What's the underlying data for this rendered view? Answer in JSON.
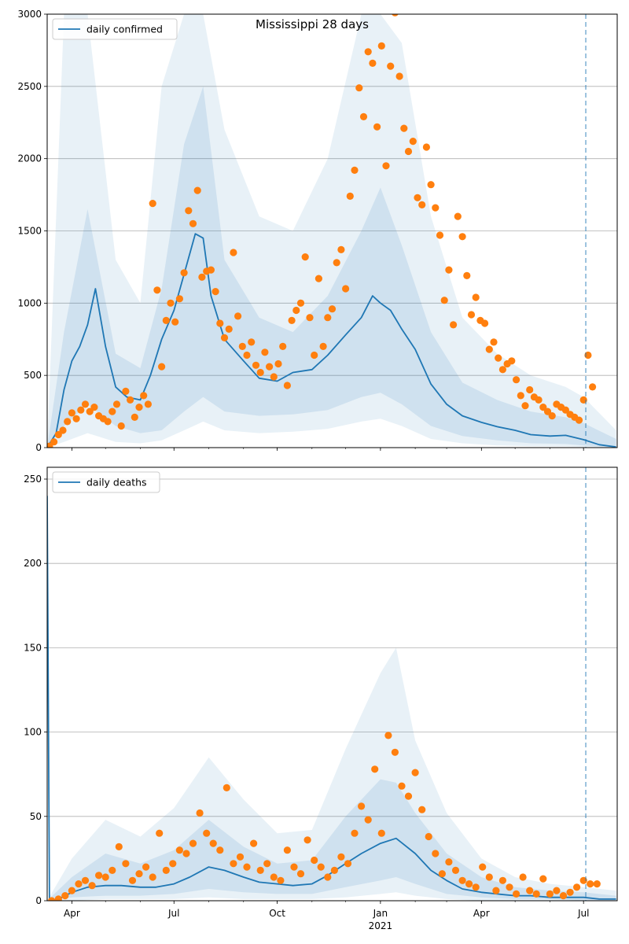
{
  "chart_data": [
    {
      "type": "line",
      "title": "Mississippi 28 days",
      "legend": {
        "label": "daily confirmed",
        "placement": "top-left"
      },
      "ylim": [
        0,
        3000
      ],
      "yticks": [
        0,
        500,
        1000,
        1500,
        2000,
        2500,
        3000
      ],
      "grid": "horizontal",
      "colors": {
        "line": "#1f77b4",
        "points": "#ff7f0e",
        "band": "#1f77b4"
      },
      "forecast_start": "2021-07-03",
      "line": {
        "name": "daily confirmed",
        "x": [
          "2020-03-10",
          "2020-03-18",
          "2020-03-25",
          "2020-04-01",
          "2020-04-08",
          "2020-04-15",
          "2020-04-22",
          "2020-05-01",
          "2020-05-10",
          "2020-05-20",
          "2020-06-01",
          "2020-06-10",
          "2020-06-20",
          "2020-07-01",
          "2020-07-10",
          "2020-07-20",
          "2020-07-27",
          "2020-08-03",
          "2020-08-15",
          "2020-09-01",
          "2020-09-15",
          "2020-10-01",
          "2020-10-15",
          "2020-11-01",
          "2020-11-15",
          "2020-12-01",
          "2020-12-15",
          "2020-12-25",
          "2021-01-01",
          "2021-01-10",
          "2021-01-20",
          "2021-02-01",
          "2021-02-15",
          "2021-03-01",
          "2021-03-15",
          "2021-04-01",
          "2021-04-15",
          "2021-05-01",
          "2021-05-15",
          "2021-06-01",
          "2021-06-15",
          "2021-07-01",
          "2021-07-15",
          "2021-07-30"
        ],
        "y": [
          0,
          100,
          400,
          600,
          700,
          850,
          1100,
          700,
          420,
          350,
          330,
          500,
          750,
          950,
          1200,
          1480,
          1450,
          1050,
          750,
          600,
          480,
          460,
          520,
          540,
          640,
          780,
          900,
          1050,
          1000,
          950,
          820,
          680,
          440,
          300,
          220,
          175,
          145,
          120,
          90,
          80,
          85,
          55,
          20,
          5
        ]
      },
      "band_inner": {
        "x": [
          "2020-03-10",
          "2020-03-25",
          "2020-04-15",
          "2020-05-10",
          "2020-06-01",
          "2020-06-20",
          "2020-07-10",
          "2020-07-27",
          "2020-08-15",
          "2020-09-15",
          "2020-10-15",
          "2020-11-15",
          "2020-12-15",
          "2021-01-01",
          "2021-01-20",
          "2021-02-15",
          "2021-03-15",
          "2021-04-15",
          "2021-05-15",
          "2021-06-15",
          "2021-07-01",
          "2021-07-30"
        ],
        "lower": [
          0,
          150,
          300,
          150,
          100,
          120,
          250,
          350,
          250,
          220,
          230,
          260,
          350,
          380,
          300,
          150,
          80,
          50,
          30,
          25,
          15,
          0
        ],
        "upper": [
          0,
          800,
          1650,
          650,
          550,
          1100,
          2100,
          2500,
          1300,
          900,
          800,
          1050,
          1500,
          1800,
          1400,
          800,
          450,
          330,
          250,
          210,
          170,
          60
        ]
      },
      "band_outer": {
        "x": [
          "2020-03-10",
          "2020-03-25",
          "2020-04-15",
          "2020-05-10",
          "2020-06-01",
          "2020-06-20",
          "2020-07-10",
          "2020-07-27",
          "2020-08-15",
          "2020-09-15",
          "2020-10-15",
          "2020-11-15",
          "2020-12-15",
          "2021-01-01",
          "2021-01-20",
          "2021-02-15",
          "2021-03-15",
          "2021-04-15",
          "2021-05-15",
          "2021-06-15",
          "2021-07-01",
          "2021-07-30"
        ],
        "lower": [
          0,
          40,
          100,
          40,
          30,
          50,
          120,
          180,
          120,
          100,
          110,
          130,
          180,
          200,
          150,
          60,
          30,
          15,
          10,
          8,
          5,
          0
        ],
        "upper": [
          0,
          3000,
          3000,
          1300,
          1000,
          2500,
          3000,
          3000,
          2200,
          1600,
          1500,
          2000,
          3000,
          3000,
          2800,
          1600,
          900,
          650,
          500,
          420,
          350,
          120
        ]
      },
      "points": {
        "name": "observed",
        "x": [
          "2020-03-12",
          "2020-03-16",
          "2020-03-20",
          "2020-03-24",
          "2020-03-28",
          "2020-04-01",
          "2020-04-05",
          "2020-04-09",
          "2020-04-13",
          "2020-04-17",
          "2020-04-21",
          "2020-04-25",
          "2020-04-29",
          "2020-05-03",
          "2020-05-07",
          "2020-05-11",
          "2020-05-15",
          "2020-05-19",
          "2020-05-23",
          "2020-05-27",
          "2020-05-31",
          "2020-06-04",
          "2020-06-08",
          "2020-06-12",
          "2020-06-16",
          "2020-06-20",
          "2020-06-24",
          "2020-06-28",
          "2020-07-02",
          "2020-07-06",
          "2020-07-10",
          "2020-07-14",
          "2020-07-18",
          "2020-07-22",
          "2020-07-26",
          "2020-07-30",
          "2020-08-03",
          "2020-08-07",
          "2020-08-11",
          "2020-08-15",
          "2020-08-19",
          "2020-08-23",
          "2020-08-27",
          "2020-08-31",
          "2020-09-04",
          "2020-09-08",
          "2020-09-12",
          "2020-09-16",
          "2020-09-20",
          "2020-09-24",
          "2020-09-28",
          "2020-10-02",
          "2020-10-06",
          "2020-10-10",
          "2020-10-14",
          "2020-10-18",
          "2020-10-22",
          "2020-10-26",
          "2020-10-30",
          "2020-11-03",
          "2020-11-07",
          "2020-11-11",
          "2020-11-15",
          "2020-11-19",
          "2020-11-23",
          "2020-11-27",
          "2020-12-01",
          "2020-12-05",
          "2020-12-09",
          "2020-12-13",
          "2020-12-17",
          "2020-12-21",
          "2020-12-25",
          "2020-12-29",
          "2021-01-02",
          "2021-01-06",
          "2021-01-10",
          "2021-01-14",
          "2021-01-18",
          "2021-01-22",
          "2021-01-26",
          "2021-01-30",
          "2021-02-03",
          "2021-02-07",
          "2021-02-11",
          "2021-02-15",
          "2021-02-19",
          "2021-02-23",
          "2021-02-27",
          "2021-03-03",
          "2021-03-07",
          "2021-03-11",
          "2021-03-15",
          "2021-03-19",
          "2021-03-23",
          "2021-03-27",
          "2021-03-31",
          "2021-04-04",
          "2021-04-08",
          "2021-04-12",
          "2021-04-16",
          "2021-04-20",
          "2021-04-24",
          "2021-04-28",
          "2021-05-02",
          "2021-05-06",
          "2021-05-10",
          "2021-05-14",
          "2021-05-18",
          "2021-05-22",
          "2021-05-26",
          "2021-05-30",
          "2021-06-03",
          "2021-06-07",
          "2021-06-11",
          "2021-06-15",
          "2021-06-19",
          "2021-06-23",
          "2021-06-27",
          "2021-07-01",
          "2021-07-05",
          "2021-07-09"
        ],
        "y": [
          10,
          40,
          90,
          120,
          180,
          240,
          200,
          260,
          300,
          250,
          280,
          220,
          200,
          180,
          250,
          300,
          150,
          390,
          330,
          210,
          280,
          360,
          300,
          1690,
          1090,
          560,
          880,
          1000,
          870,
          1030,
          1210,
          1640,
          1550,
          1780,
          1180,
          1220,
          1230,
          1080,
          860,
          760,
          820,
          1350,
          910,
          700,
          640,
          730,
          570,
          520,
          660,
          560,
          490,
          580,
          700,
          430,
          880,
          950,
          1000,
          1320,
          900,
          640,
          1170,
          700,
          900,
          960,
          1280,
          1370,
          1100,
          1740,
          1920,
          2490,
          2290,
          2740,
          2660,
          2220,
          2780,
          1950,
          2640,
          3010,
          2570,
          2210,
          2050,
          2120,
          1730,
          1680,
          2080,
          1820,
          1660,
          1470,
          1020,
          1230,
          850,
          1600,
          1460,
          1190,
          920,
          1040,
          880,
          860,
          680,
          730,
          620,
          540,
          580,
          600,
          470,
          360,
          290,
          400,
          350,
          330,
          280,
          250,
          220,
          300,
          280,
          260,
          230,
          210,
          190,
          330,
          640,
          420
        ]
      }
    },
    {
      "type": "line",
      "title": "",
      "legend": {
        "label": "daily deaths",
        "placement": "top-left"
      },
      "ylim": [
        0,
        257
      ],
      "yticks": [
        0,
        50,
        100,
        150,
        200,
        250
      ],
      "grid": "horizontal",
      "colors": {
        "line": "#1f77b4",
        "points": "#ff7f0e",
        "band": "#1f77b4"
      },
      "forecast_start": "2021-07-03",
      "line": {
        "name": "daily deaths",
        "x": [
          "2020-03-10",
          "2020-03-12",
          "2020-03-20",
          "2020-04-01",
          "2020-04-15",
          "2020-05-01",
          "2020-05-15",
          "2020-06-01",
          "2020-06-15",
          "2020-07-01",
          "2020-07-15",
          "2020-08-01",
          "2020-08-15",
          "2020-09-01",
          "2020-09-15",
          "2020-10-01",
          "2020-10-15",
          "2020-11-01",
          "2020-11-15",
          "2020-12-01",
          "2020-12-15",
          "2021-01-01",
          "2021-01-15",
          "2021-02-01",
          "2021-02-15",
          "2021-03-01",
          "2021-03-15",
          "2021-04-01",
          "2021-04-15",
          "2021-05-01",
          "2021-05-15",
          "2021-06-01",
          "2021-06-15",
          "2021-07-01",
          "2021-07-15",
          "2021-07-30"
        ],
        "y": [
          240,
          0,
          1,
          5,
          8,
          9,
          9,
          8,
          8,
          10,
          14,
          20,
          18,
          14,
          11,
          10,
          9,
          10,
          15,
          22,
          28,
          34,
          37,
          28,
          18,
          12,
          7,
          5,
          4,
          3,
          3,
          2,
          2,
          2,
          1,
          1
        ]
      },
      "band_inner": {
        "x": [
          "2020-03-10",
          "2020-04-01",
          "2020-05-01",
          "2020-06-01",
          "2020-07-01",
          "2020-08-01",
          "2020-09-01",
          "2020-10-01",
          "2020-11-01",
          "2020-12-01",
          "2021-01-01",
          "2021-01-15",
          "2021-02-01",
          "2021-03-01",
          "2021-04-01",
          "2021-05-01",
          "2021-06-01",
          "2021-07-01",
          "2021-07-30"
        ],
        "lower": [
          0,
          2,
          3,
          3,
          4,
          7,
          5,
          4,
          4,
          8,
          12,
          14,
          10,
          4,
          2,
          1,
          1,
          0,
          0
        ],
        "upper": [
          0,
          14,
          28,
          22,
          30,
          48,
          32,
          22,
          24,
          50,
          72,
          70,
          52,
          28,
          14,
          8,
          6,
          5,
          3
        ]
      },
      "band_outer": {
        "x": [
          "2020-03-10",
          "2020-04-01",
          "2020-05-01",
          "2020-06-01",
          "2020-07-01",
          "2020-08-01",
          "2020-09-01",
          "2020-10-01",
          "2020-11-01",
          "2020-12-01",
          "2021-01-01",
          "2021-01-15",
          "2021-02-01",
          "2021-03-01",
          "2021-04-01",
          "2021-05-01",
          "2021-06-01",
          "2021-07-01",
          "2021-07-30"
        ],
        "lower": [
          0,
          0,
          1,
          1,
          1,
          2,
          1,
          1,
          1,
          2,
          4,
          5,
          3,
          1,
          0,
          0,
          0,
          0,
          0
        ],
        "upper": [
          0,
          25,
          48,
          38,
          55,
          85,
          60,
          40,
          42,
          90,
          135,
          150,
          95,
          52,
          25,
          14,
          10,
          8,
          6
        ]
      },
      "points": {
        "name": "observed",
        "x": [
          "2020-03-14",
          "2020-03-20",
          "2020-03-26",
          "2020-04-01",
          "2020-04-07",
          "2020-04-13",
          "2020-04-19",
          "2020-04-25",
          "2020-05-01",
          "2020-05-07",
          "2020-05-13",
          "2020-05-19",
          "2020-05-25",
          "2020-05-31",
          "2020-06-06",
          "2020-06-12",
          "2020-06-18",
          "2020-06-24",
          "2020-06-30",
          "2020-07-06",
          "2020-07-12",
          "2020-07-18",
          "2020-07-24",
          "2020-07-30",
          "2020-08-05",
          "2020-08-11",
          "2020-08-17",
          "2020-08-23",
          "2020-08-29",
          "2020-09-04",
          "2020-09-10",
          "2020-09-16",
          "2020-09-22",
          "2020-09-28",
          "2020-10-04",
          "2020-10-10",
          "2020-10-16",
          "2020-10-22",
          "2020-10-28",
          "2020-11-03",
          "2020-11-09",
          "2020-11-15",
          "2020-11-21",
          "2020-11-27",
          "2020-12-03",
          "2020-12-09",
          "2020-12-15",
          "2020-12-21",
          "2020-12-27",
          "2021-01-02",
          "2021-01-08",
          "2021-01-14",
          "2021-01-20",
          "2021-01-26",
          "2021-02-01",
          "2021-02-07",
          "2021-02-13",
          "2021-02-19",
          "2021-02-25",
          "2021-03-03",
          "2021-03-09",
          "2021-03-15",
          "2021-03-21",
          "2021-03-27",
          "2021-04-02",
          "2021-04-08",
          "2021-04-14",
          "2021-04-20",
          "2021-04-26",
          "2021-05-02",
          "2021-05-08",
          "2021-05-14",
          "2021-05-20",
          "2021-05-26",
          "2021-06-01",
          "2021-06-07",
          "2021-06-13",
          "2021-06-19",
          "2021-06-25",
          "2021-07-01",
          "2021-07-07",
          "2021-07-13"
        ],
        "y": [
          0,
          1,
          3,
          6,
          10,
          12,
          9,
          15,
          14,
          18,
          32,
          22,
          12,
          16,
          20,
          14,
          40,
          18,
          22,
          30,
          28,
          34,
          52,
          40,
          34,
          30,
          67,
          22,
          26,
          20,
          34,
          18,
          22,
          14,
          12,
          30,
          20,
          16,
          36,
          24,
          20,
          14,
          18,
          26,
          22,
          40,
          56,
          48,
          78,
          40,
          98,
          88,
          68,
          62,
          76,
          54,
          38,
          28,
          16,
          23,
          18,
          12,
          10,
          8,
          20,
          14,
          6,
          12,
          8,
          4,
          14,
          6,
          4,
          13,
          4,
          6,
          3,
          5,
          8,
          12,
          10,
          10
        ]
      }
    }
  ],
  "x_axis": {
    "ticks": [
      {
        "date": "2020-04-01",
        "label": "Apr"
      },
      {
        "date": "2020-07-01",
        "label": "Jul"
      },
      {
        "date": "2020-10-01",
        "label": "Oct"
      },
      {
        "date": "2021-01-01",
        "label": "Jan"
      },
      {
        "date": "2021-04-01",
        "label": "Apr"
      },
      {
        "date": "2021-07-01",
        "label": "Jul"
      }
    ],
    "year_label": "2021",
    "range": [
      "2020-03-10",
      "2021-07-31"
    ]
  }
}
